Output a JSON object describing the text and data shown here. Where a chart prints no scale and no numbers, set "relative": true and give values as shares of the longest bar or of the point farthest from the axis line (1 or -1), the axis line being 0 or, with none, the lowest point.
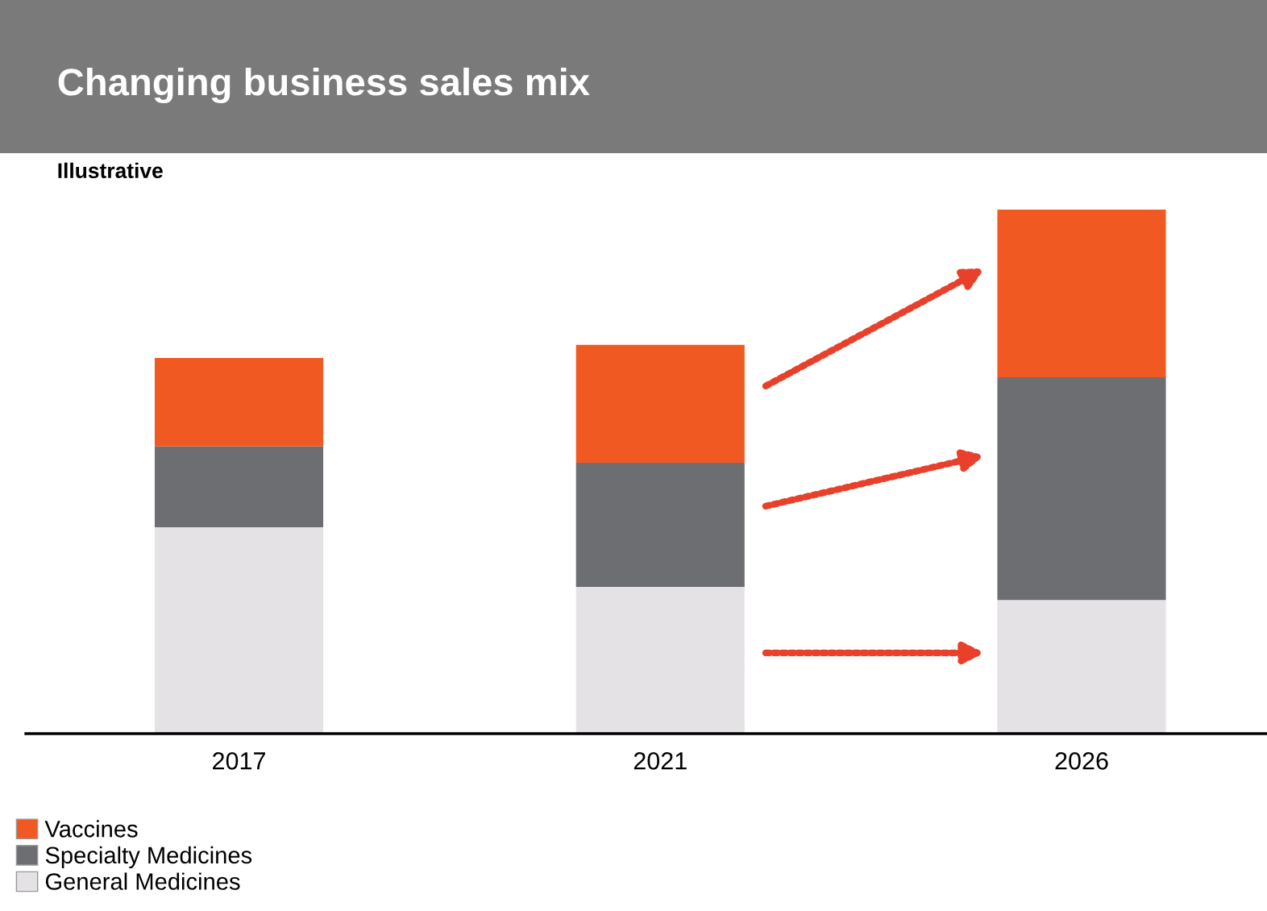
{
  "chart_data": {
    "type": "bar",
    "title": "Changing business sales mix",
    "subtitle": "Illustrative",
    "categories": [
      "2017",
      "2021",
      "2026"
    ],
    "stacked": true,
    "relative": true,
    "legend": "bottom left",
    "grid": false,
    "series": [
      {
        "name": "General Medicines",
        "color": "#e4e2e4",
        "values": [
          0.394,
          0.28,
          0.255
        ]
      },
      {
        "name": "Specialty Medicines",
        "color": "#6d6e71",
        "values": [
          0.154,
          0.237,
          0.425
        ]
      },
      {
        "name": "Vaccines",
        "color": "#f05a22",
        "values": [
          0.169,
          0.225,
          0.32
        ]
      }
    ]
  }
}
